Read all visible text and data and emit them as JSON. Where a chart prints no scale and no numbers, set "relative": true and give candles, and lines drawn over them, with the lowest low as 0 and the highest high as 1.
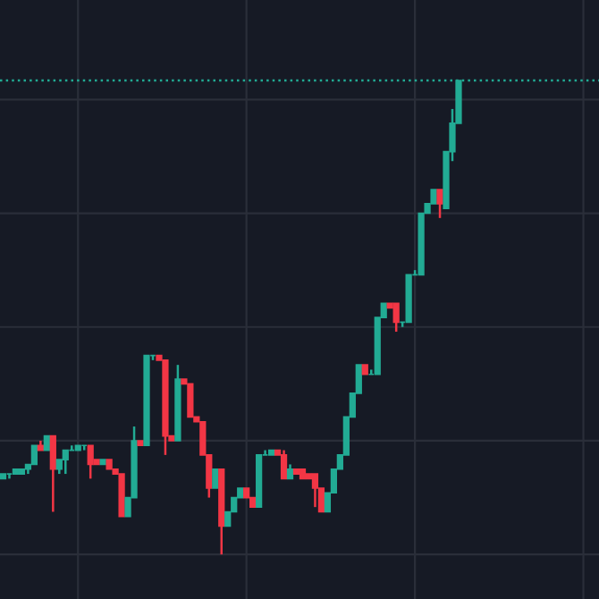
{
  "chart_data": {
    "type": "candlestick",
    "relative": true,
    "grid": true,
    "categories": [
      null,
      null,
      null,
      null,
      null,
      null,
      null,
      null,
      null,
      null,
      null,
      null,
      null,
      null,
      null,
      null,
      null,
      null,
      null,
      null,
      null,
      null,
      null,
      null,
      null,
      null,
      null,
      null,
      null,
      null,
      null,
      null,
      null,
      null,
      null,
      null,
      null,
      null,
      null,
      null,
      null,
      null,
      null,
      null,
      null,
      null,
      null,
      null,
      null,
      null,
      null,
      null,
      null,
      null,
      null,
      null,
      null,
      null,
      null,
      null,
      null,
      null,
      null,
      null,
      null,
      null,
      null,
      null,
      null,
      null,
      null,
      null,
      null,
      null,
      null,
      null,
      null,
      null,
      null,
      null,
      null,
      null,
      null,
      null,
      null,
      null,
      null,
      null,
      null,
      null,
      null,
      null,
      null,
      null,
      null,
      null
    ],
    "ohlc": [
      [
        0.16,
        0.17,
        0.16,
        0.17
      ],
      [
        0.17,
        0.17,
        0.16,
        0.17
      ],
      [
        0.17,
        0.18,
        0.17,
        0.18
      ],
      [
        0.17,
        0.18,
        0.17,
        0.18
      ],
      [
        0.18,
        0.19,
        0.17,
        0.19
      ],
      [
        0.19,
        0.23,
        0.19,
        0.23
      ],
      [
        0.23,
        0.24,
        0.22,
        0.22
      ],
      [
        0.22,
        0.25,
        0.22,
        0.25
      ],
      [
        0.25,
        0.25,
        0.09,
        0.18
      ],
      [
        0.18,
        0.2,
        0.17,
        0.2
      ],
      [
        0.2,
        0.22,
        0.17,
        0.22
      ],
      [
        0.22,
        0.23,
        0.22,
        0.22
      ],
      [
        0.22,
        0.23,
        0.22,
        0.23
      ],
      [
        0.23,
        0.23,
        0.22,
        0.23
      ],
      [
        0.23,
        0.23,
        0.16,
        0.19
      ],
      [
        0.2,
        0.2,
        0.19,
        0.19
      ],
      [
        0.19,
        0.2,
        0.19,
        0.2
      ],
      [
        0.2,
        0.2,
        0.18,
        0.18
      ],
      [
        0.18,
        0.18,
        0.17,
        0.17
      ],
      [
        0.17,
        0.17,
        0.08,
        0.08
      ],
      [
        0.08,
        0.12,
        0.08,
        0.12
      ],
      [
        0.12,
        0.27,
        0.12,
        0.24
      ],
      [
        0.24,
        0.24,
        0.23,
        0.23
      ],
      [
        0.23,
        0.42,
        0.23,
        0.42
      ],
      [
        0.42,
        0.42,
        0.41,
        0.42
      ],
      [
        0.42,
        0.42,
        0.41,
        0.41
      ],
      [
        0.41,
        0.41,
        0.21,
        0.25
      ],
      [
        0.25,
        0.25,
        0.24,
        0.24
      ],
      [
        0.24,
        0.4,
        0.24,
        0.37
      ],
      [
        0.37,
        0.37,
        0.36,
        0.36
      ],
      [
        0.36,
        0.36,
        0.29,
        0.29
      ],
      [
        0.29,
        0.29,
        0.28,
        0.28
      ],
      [
        0.28,
        0.28,
        0.21,
        0.21
      ],
      [
        0.21,
        0.21,
        0.12,
        0.14
      ],
      [
        0.14,
        0.18,
        0.14,
        0.18
      ],
      [
        0.18,
        0.18,
        0.0,
        0.06
      ],
      [
        0.06,
        0.09,
        0.06,
        0.09
      ],
      [
        0.09,
        0.12,
        0.09,
        0.12
      ],
      [
        0.12,
        0.14,
        0.12,
        0.14
      ],
      [
        0.14,
        0.14,
        0.12,
        0.12
      ],
      [
        0.12,
        0.12,
        0.1,
        0.1
      ],
      [
        0.1,
        0.21,
        0.1,
        0.21
      ],
      [
        0.21,
        0.22,
        0.21,
        0.21
      ],
      [
        0.21,
        0.22,
        0.21,
        0.22
      ],
      [
        0.22,
        0.22,
        0.21,
        0.21
      ],
      [
        0.21,
        0.22,
        0.16,
        0.16
      ],
      [
        0.16,
        0.19,
        0.16,
        0.18
      ],
      [
        0.18,
        0.18,
        0.17,
        0.17
      ],
      [
        0.18,
        0.18,
        0.16,
        0.16
      ],
      [
        0.17,
        0.17,
        0.16,
        0.16
      ],
      [
        0.17,
        0.17,
        0.1,
        0.14
      ],
      [
        0.14,
        0.14,
        0.09,
        0.09
      ],
      [
        0.09,
        0.13,
        0.09,
        0.13
      ],
      [
        0.13,
        0.18,
        0.13,
        0.18
      ],
      [
        0.18,
        0.21,
        0.18,
        0.21
      ],
      [
        0.21,
        0.29,
        0.21,
        0.29
      ],
      [
        0.29,
        0.34,
        0.29,
        0.34
      ],
      [
        0.34,
        0.4,
        0.34,
        0.4
      ],
      [
        0.4,
        0.4,
        0.38,
        0.38
      ],
      [
        0.38,
        0.39,
        0.38,
        0.38
      ],
      [
        0.38,
        0.5,
        0.38,
        0.5
      ],
      [
        0.5,
        0.53,
        0.5,
        0.53
      ],
      [
        0.53,
        0.53,
        0.52,
        0.52
      ],
      [
        0.53,
        0.53,
        0.47,
        0.49
      ],
      [
        0.49,
        0.49,
        0.48,
        0.49
      ],
      [
        0.49,
        0.59,
        0.49,
        0.59
      ],
      [
        0.59,
        0.6,
        0.59,
        0.59
      ],
      [
        0.59,
        0.72,
        0.59,
        0.72
      ],
      [
        0.72,
        0.74,
        0.72,
        0.74
      ],
      [
        0.74,
        0.77,
        0.74,
        0.77
      ],
      [
        0.77,
        0.77,
        0.71,
        0.74
      ],
      [
        0.73,
        0.85,
        0.73,
        0.85
      ],
      [
        0.85,
        0.94,
        0.83,
        0.91
      ],
      [
        0.91,
        1.0,
        0.91,
        1.0
      ],
      null,
      null,
      null,
      null,
      null,
      null,
      null,
      null,
      null,
      null,
      null,
      null,
      null,
      null,
      null,
      null,
      null,
      null,
      null,
      null,
      null,
      null
    ],
    "colors": [
      "#22ab94",
      "#22ab94",
      "#22ab94",
      "#22ab94",
      "#22ab94",
      "#22ab94",
      "#f23645",
      "#22ab94",
      "#f23645",
      "#22ab94",
      "#22ab94",
      "#22ab94",
      "#22ab94",
      "#22ab94",
      "#f23645",
      "#f23645",
      "#22ab94",
      "#f23645",
      "#f23645",
      "#f23645",
      "#22ab94",
      "#22ab94",
      "#f23645",
      "#22ab94",
      "#22ab94",
      "#f23645",
      "#f23645",
      "#f23645",
      "#22ab94",
      "#f23645",
      "#f23645",
      "#f23645",
      "#f23645",
      "#f23645",
      "#22ab94",
      "#f23645",
      "#22ab94",
      "#22ab94",
      "#22ab94",
      "#f23645",
      "#f23645",
      "#22ab94",
      "#22ab94",
      "#22ab94",
      "#f23645",
      "#f23645",
      "#22ab94",
      "#f23645",
      "#f23645",
      "#f23645",
      "#f23645",
      "#f23645",
      "#22ab94",
      "#22ab94",
      "#22ab94",
      "#22ab94",
      "#22ab94",
      "#22ab94",
      "#f23645",
      "#22ab94",
      "#22ab94",
      "#22ab94",
      "#f23645",
      "#f23645",
      "#22ab94",
      "#22ab94",
      "#22ab94",
      "#22ab94",
      "#22ab94",
      "#22ab94",
      "#f23645",
      "#22ab94",
      "#22ab94",
      "#22ab94",
      null,
      null,
      null,
      null,
      null,
      null,
      null,
      null,
      null,
      null,
      null,
      null,
      null,
      null,
      null,
      null,
      null,
      null,
      null,
      null,
      null,
      null
    ],
    "ref_lines": [
      {
        "axis": "y",
        "value": 1,
        "color": "#22ab94",
        "line_style": "dotted"
      }
    ]
  }
}
